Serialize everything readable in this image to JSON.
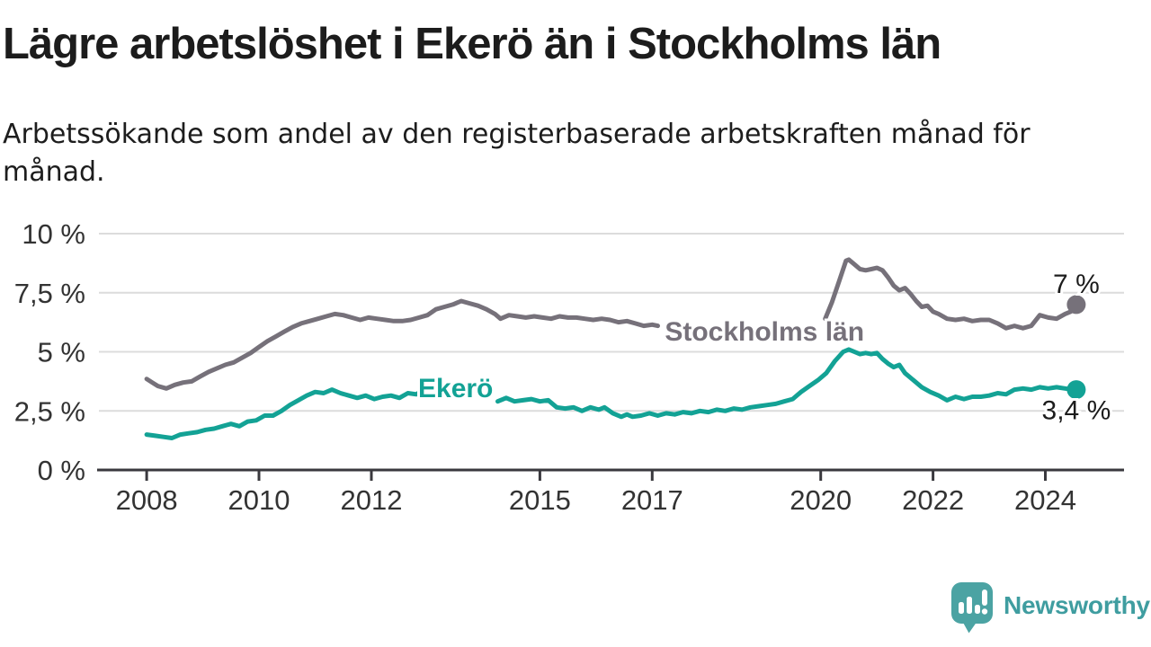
{
  "chart_data": {
    "type": "line",
    "title": "Lägre arbetslöshet i Ekerö än i Stockholms län",
    "subtitle_line1": "Arbetssökande som andel av den registerbaserade arbetskraften månad för",
    "subtitle_line2": "månad.",
    "x_axis": {
      "range": [
        2007.15,
        2025.4
      ],
      "ticks": [
        {
          "value": 2008,
          "label": "2008"
        },
        {
          "value": 2010,
          "label": "2010"
        },
        {
          "value": 2012,
          "label": "2012"
        },
        {
          "value": 2015,
          "label": "2015"
        },
        {
          "value": 2017,
          "label": "2017"
        },
        {
          "value": 2020,
          "label": "2020"
        },
        {
          "value": 2022,
          "label": "2022"
        },
        {
          "value": 2024,
          "label": "2024"
        }
      ]
    },
    "y_axis": {
      "range": [
        0,
        10
      ],
      "unit": "%",
      "grid": true,
      "ticks": [
        {
          "value": 0,
          "label": "0 %"
        },
        {
          "value": 2.5,
          "label": "2,5 %"
        },
        {
          "value": 5,
          "label": "5 %"
        },
        {
          "value": 7.5,
          "label": "7,5 %"
        },
        {
          "value": 10,
          "label": "10 %"
        }
      ]
    },
    "legend_position": "inline",
    "series": [
      {
        "name": "Stockholms län",
        "color": "#76717a",
        "label_position": {
          "x": 2019.0,
          "y": 5.9
        },
        "end_label": "7 %",
        "end_label_placement": "above",
        "final_value": 7.0,
        "segments": [
          [
            [
              2008.0,
              3.85
            ],
            [
              2008.1,
              3.7
            ],
            [
              2008.2,
              3.55
            ],
            [
              2008.35,
              3.45
            ],
            [
              2008.5,
              3.6
            ],
            [
              2008.65,
              3.7
            ],
            [
              2008.8,
              3.75
            ],
            [
              2008.95,
              3.95
            ],
            [
              2009.1,
              4.15
            ],
            [
              2009.25,
              4.3
            ],
            [
              2009.4,
              4.45
            ],
            [
              2009.55,
              4.55
            ],
            [
              2009.7,
              4.75
            ],
            [
              2009.85,
              4.95
            ],
            [
              2010.0,
              5.2
            ],
            [
              2010.15,
              5.45
            ],
            [
              2010.3,
              5.65
            ],
            [
              2010.45,
              5.85
            ],
            [
              2010.6,
              6.05
            ],
            [
              2010.75,
              6.2
            ],
            [
              2010.9,
              6.3
            ],
            [
              2011.05,
              6.4
            ],
            [
              2011.2,
              6.5
            ],
            [
              2011.35,
              6.6
            ],
            [
              2011.5,
              6.55
            ],
            [
              2011.65,
              6.45
            ],
            [
              2011.8,
              6.35
            ],
            [
              2011.95,
              6.45
            ],
            [
              2012.1,
              6.4
            ],
            [
              2012.25,
              6.35
            ],
            [
              2012.4,
              6.3
            ],
            [
              2012.55,
              6.3
            ],
            [
              2012.7,
              6.35
            ],
            [
              2012.85,
              6.45
            ],
            [
              2013.0,
              6.55
            ],
            [
              2013.15,
              6.8
            ],
            [
              2013.3,
              6.9
            ],
            [
              2013.45,
              7.0
            ],
            [
              2013.6,
              7.15
            ],
            [
              2013.75,
              7.05
            ],
            [
              2013.9,
              6.95
            ],
            [
              2014.05,
              6.8
            ],
            [
              2014.2,
              6.6
            ],
            [
              2014.3,
              6.4
            ],
            [
              2014.45,
              6.55
            ],
            [
              2014.6,
              6.5
            ],
            [
              2014.75,
              6.45
            ],
            [
              2014.9,
              6.5
            ],
            [
              2015.05,
              6.45
            ],
            [
              2015.2,
              6.4
            ],
            [
              2015.35,
              6.5
            ],
            [
              2015.5,
              6.45
            ],
            [
              2015.65,
              6.45
            ],
            [
              2015.8,
              6.4
            ],
            [
              2015.95,
              6.35
            ],
            [
              2016.1,
              6.4
            ],
            [
              2016.25,
              6.35
            ],
            [
              2016.4,
              6.25
            ],
            [
              2016.55,
              6.3
            ],
            [
              2016.7,
              6.2
            ],
            [
              2016.85,
              6.1
            ],
            [
              2017.0,
              6.15
            ],
            [
              2017.1,
              6.1
            ]
          ],
          [
            [
              2020.08,
              6.4
            ],
            [
              2020.2,
              7.1
            ],
            [
              2020.33,
              8.0
            ],
            [
              2020.45,
              8.85
            ],
            [
              2020.5,
              8.9
            ],
            [
              2020.6,
              8.7
            ],
            [
              2020.7,
              8.5
            ],
            [
              2020.8,
              8.45
            ],
            [
              2020.9,
              8.5
            ],
            [
              2021.0,
              8.55
            ],
            [
              2021.1,
              8.45
            ],
            [
              2021.2,
              8.15
            ],
            [
              2021.3,
              7.8
            ],
            [
              2021.4,
              7.6
            ],
            [
              2021.5,
              7.7
            ],
            [
              2021.6,
              7.45
            ],
            [
              2021.7,
              7.15
            ],
            [
              2021.8,
              6.9
            ],
            [
              2021.9,
              6.95
            ],
            [
              2022.0,
              6.7
            ],
            [
              2022.1,
              6.6
            ],
            [
              2022.25,
              6.4
            ],
            [
              2022.4,
              6.35
            ],
            [
              2022.55,
              6.4
            ],
            [
              2022.7,
              6.3
            ],
            [
              2022.85,
              6.35
            ],
            [
              2023.0,
              6.35
            ],
            [
              2023.15,
              6.2
            ],
            [
              2023.3,
              6.0
            ],
            [
              2023.45,
              6.1
            ],
            [
              2023.6,
              6.0
            ],
            [
              2023.75,
              6.1
            ],
            [
              2023.9,
              6.55
            ],
            [
              2024.05,
              6.45
            ],
            [
              2024.2,
              6.4
            ],
            [
              2024.35,
              6.6
            ],
            [
              2024.45,
              6.7
            ],
            [
              2024.55,
              7.0
            ]
          ]
        ]
      },
      {
        "name": "Ekerö",
        "color": "#13a295",
        "label_position": {
          "x": 2013.5,
          "y": 3.5
        },
        "end_label": "3,4 %",
        "end_label_placement": "below",
        "final_value": 3.4,
        "segments": [
          [
            [
              2008.0,
              1.5
            ],
            [
              2008.15,
              1.45
            ],
            [
              2008.3,
              1.4
            ],
            [
              2008.45,
              1.35
            ],
            [
              2008.6,
              1.5
            ],
            [
              2008.75,
              1.55
            ],
            [
              2008.9,
              1.6
            ],
            [
              2009.05,
              1.7
            ],
            [
              2009.2,
              1.75
            ],
            [
              2009.35,
              1.85
            ],
            [
              2009.5,
              1.95
            ],
            [
              2009.65,
              1.85
            ],
            [
              2009.8,
              2.05
            ],
            [
              2009.95,
              2.1
            ],
            [
              2010.1,
              2.3
            ],
            [
              2010.25,
              2.3
            ],
            [
              2010.4,
              2.5
            ],
            [
              2010.55,
              2.75
            ],
            [
              2010.7,
              2.95
            ],
            [
              2010.85,
              3.15
            ],
            [
              2011.0,
              3.3
            ],
            [
              2011.15,
              3.25
            ],
            [
              2011.3,
              3.4
            ],
            [
              2011.45,
              3.25
            ],
            [
              2011.6,
              3.15
            ],
            [
              2011.75,
              3.05
            ],
            [
              2011.9,
              3.15
            ],
            [
              2012.05,
              3.0
            ],
            [
              2012.2,
              3.1
            ],
            [
              2012.35,
              3.15
            ],
            [
              2012.5,
              3.05
            ],
            [
              2012.65,
              3.25
            ],
            [
              2012.8,
              3.2
            ],
            [
              2012.87,
              3.3
            ]
          ],
          [
            [
              2014.25,
              2.9
            ],
            [
              2014.4,
              3.05
            ],
            [
              2014.55,
              2.9
            ],
            [
              2014.7,
              2.95
            ],
            [
              2014.85,
              3.0
            ],
            [
              2015.0,
              2.9
            ],
            [
              2015.15,
              2.95
            ],
            [
              2015.3,
              2.65
            ],
            [
              2015.45,
              2.6
            ],
            [
              2015.6,
              2.65
            ],
            [
              2015.75,
              2.5
            ],
            [
              2015.9,
              2.65
            ],
            [
              2016.05,
              2.55
            ],
            [
              2016.15,
              2.65
            ],
            [
              2016.3,
              2.4
            ],
            [
              2016.45,
              2.25
            ],
            [
              2016.55,
              2.35
            ],
            [
              2016.65,
              2.25
            ],
            [
              2016.8,
              2.3
            ],
            [
              2016.95,
              2.4
            ],
            [
              2017.1,
              2.3
            ],
            [
              2017.25,
              2.4
            ],
            [
              2017.4,
              2.35
            ],
            [
              2017.55,
              2.45
            ],
            [
              2017.7,
              2.4
            ],
            [
              2017.85,
              2.5
            ],
            [
              2018.0,
              2.45
            ],
            [
              2018.15,
              2.55
            ],
            [
              2018.3,
              2.5
            ],
            [
              2018.45,
              2.6
            ],
            [
              2018.6,
              2.55
            ],
            [
              2018.75,
              2.65
            ],
            [
              2018.9,
              2.7
            ],
            [
              2019.05,
              2.75
            ],
            [
              2019.2,
              2.8
            ],
            [
              2019.35,
              2.9
            ],
            [
              2019.5,
              3.0
            ],
            [
              2019.65,
              3.3
            ],
            [
              2019.8,
              3.55
            ],
            [
              2019.95,
              3.8
            ],
            [
              2020.1,
              4.1
            ],
            [
              2020.25,
              4.6
            ],
            [
              2020.4,
              5.0
            ],
            [
              2020.5,
              5.1
            ],
            [
              2020.6,
              5.0
            ],
            [
              2020.7,
              4.9
            ],
            [
              2020.8,
              4.95
            ],
            [
              2020.9,
              4.9
            ],
            [
              2021.0,
              4.95
            ],
            [
              2021.1,
              4.7
            ],
            [
              2021.2,
              4.5
            ],
            [
              2021.3,
              4.35
            ],
            [
              2021.4,
              4.45
            ],
            [
              2021.5,
              4.1
            ],
            [
              2021.65,
              3.8
            ],
            [
              2021.8,
              3.5
            ],
            [
              2021.95,
              3.3
            ],
            [
              2022.1,
              3.15
            ],
            [
              2022.25,
              2.95
            ],
            [
              2022.4,
              3.1
            ],
            [
              2022.55,
              3.0
            ],
            [
              2022.7,
              3.1
            ],
            [
              2022.85,
              3.1
            ],
            [
              2023.0,
              3.15
            ],
            [
              2023.15,
              3.25
            ],
            [
              2023.3,
              3.2
            ],
            [
              2023.45,
              3.4
            ],
            [
              2023.6,
              3.45
            ],
            [
              2023.75,
              3.4
            ],
            [
              2023.9,
              3.5
            ],
            [
              2024.05,
              3.45
            ],
            [
              2024.2,
              3.5
            ],
            [
              2024.35,
              3.45
            ],
            [
              2024.5,
              3.4
            ],
            [
              2024.55,
              3.4
            ]
          ]
        ]
      }
    ]
  },
  "branding": {
    "logo_text": "Newsworthy"
  },
  "colors": {
    "grid": "#dcdcdc",
    "axis": "#3a393e",
    "tick_text": "#333333",
    "value_text": "#1c1c1c",
    "logo_text": "#3f9da0",
    "logo_icon": "#4ba3a3"
  }
}
